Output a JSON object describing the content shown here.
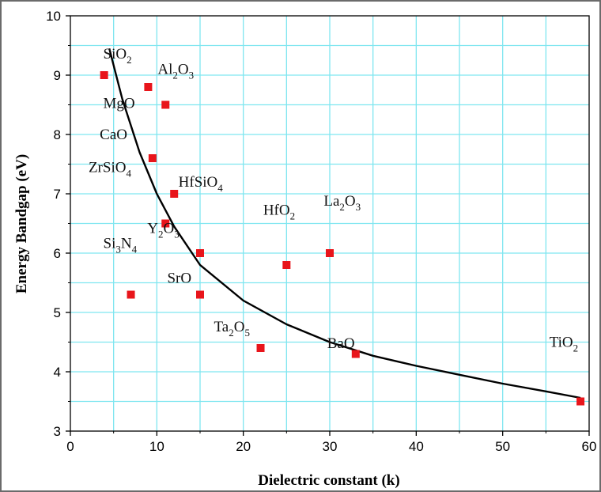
{
  "chart_data": {
    "type": "scatter",
    "xlabel": "Dielectric constant (k)",
    "ylabel": "Energy Bandgap (eV)",
    "xlim": [
      0,
      60
    ],
    "ylim": [
      3,
      10
    ],
    "x_ticks": [
      "0",
      "10",
      "20",
      "30",
      "40",
      "50",
      "60"
    ],
    "y_ticks": [
      "3",
      "4",
      "5",
      "6",
      "7",
      "8",
      "9",
      "10"
    ],
    "grid": true,
    "marker_color": "#e8151b",
    "grid_color": "#7fe6f0",
    "curve_color": "#000000",
    "points": [
      {
        "x": 3.9,
        "y": 9.0
      },
      {
        "x": 9,
        "y": 8.8
      },
      {
        "x": 11,
        "y": 8.5
      },
      {
        "x": 9.5,
        "y": 7.6
      },
      {
        "x": 12,
        "y": 7.0
      },
      {
        "x": 11,
        "y": 6.5
      },
      {
        "x": 15,
        "y": 6.0
      },
      {
        "x": 7,
        "y": 5.3
      },
      {
        "x": 15,
        "y": 5.3
      },
      {
        "x": 25,
        "y": 5.8
      },
      {
        "x": 30,
        "y": 6.0
      },
      {
        "x": 22,
        "y": 4.4
      },
      {
        "x": 33,
        "y": 4.3
      },
      {
        "x": 59,
        "y": 3.5
      }
    ],
    "annotations": [
      {
        "main": "SiO",
        "sub": "2",
        "tail": "",
        "x": 3.8,
        "y": 9.28
      },
      {
        "main": "Al",
        "sub": "2",
        "tail": "O",
        "sub2": "3",
        "x": 10.1,
        "y": 9.02
      },
      {
        "main": "MgO",
        "sub": "",
        "tail": "",
        "x": 3.8,
        "y": 8.45
      },
      {
        "main": "CaO",
        "sub": "",
        "tail": "",
        "x": 3.4,
        "y": 7.92
      },
      {
        "main": "ZrSiO",
        "sub": "4",
        "tail": "",
        "x": 2.1,
        "y": 7.37
      },
      {
        "main": "HfSiO",
        "sub": "4",
        "tail": "",
        "x": 12.5,
        "y": 7.12
      },
      {
        "main": "Y",
        "sub": "2",
        "tail": "O",
        "sub2": "3",
        "x": 8.9,
        "y": 6.34
      },
      {
        "main": "Si",
        "sub": "3",
        "tail": "N",
        "sub2": "4",
        "x": 3.8,
        "y": 6.09
      },
      {
        "main": "HfO",
        "sub": "2",
        "tail": "",
        "x": 22.3,
        "y": 6.65
      },
      {
        "main": "La",
        "sub": "2",
        "tail": "O",
        "sub2": "3",
        "x": 29.3,
        "y": 6.8
      },
      {
        "main": "SrO",
        "sub": "",
        "tail": "",
        "x": 11.2,
        "y": 5.5
      },
      {
        "main": "Ta",
        "sub": "2",
        "tail": "O",
        "sub2": "5",
        "x": 16.6,
        "y": 4.68
      },
      {
        "main": "BaO",
        "sub": "",
        "tail": "",
        "x": 29.7,
        "y": 4.4
      },
      {
        "main": "TiO",
        "sub": "2",
        "tail": "",
        "x": 55.4,
        "y": 4.42
      }
    ],
    "fit_curve": [
      {
        "x": 4.5,
        "y": 9.45
      },
      {
        "x": 6,
        "y": 8.6
      },
      {
        "x": 8,
        "y": 7.7
      },
      {
        "x": 10,
        "y": 7.0
      },
      {
        "x": 12,
        "y": 6.45
      },
      {
        "x": 15,
        "y": 5.8
      },
      {
        "x": 20,
        "y": 5.2
      },
      {
        "x": 25,
        "y": 4.8
      },
      {
        "x": 30,
        "y": 4.5
      },
      {
        "x": 35,
        "y": 4.27
      },
      {
        "x": 40,
        "y": 4.1
      },
      {
        "x": 45,
        "y": 3.95
      },
      {
        "x": 50,
        "y": 3.8
      },
      {
        "x": 55,
        "y": 3.67
      },
      {
        "x": 59,
        "y": 3.56
      }
    ]
  }
}
